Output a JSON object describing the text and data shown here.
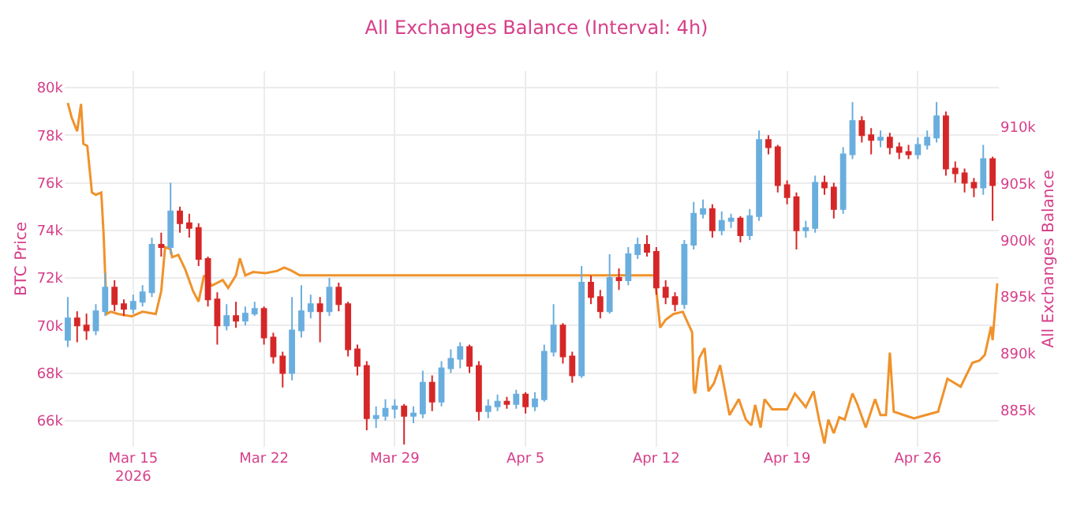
{
  "chart_data": {
    "type": "candlestick",
    "title": "All Exchanges Balance (Interval: 4h)",
    "ylabel": "BTC Price",
    "y2label": "All Exchanges Balance",
    "xlim": [
      "2026-03-11T08:00",
      "2026-04-30T08:00"
    ],
    "xticks": [
      {
        "value": "2026-03-15",
        "label": "Mar 15\n2026"
      },
      {
        "value": "2026-03-22",
        "label": "Mar 22"
      },
      {
        "value": "2026-03-29",
        "label": "Mar 29"
      },
      {
        "value": "2026-04-05",
        "label": "Apr 5"
      },
      {
        "value": "2026-04-12",
        "label": "Apr 12"
      },
      {
        "value": "2026-04-19",
        "label": "Apr 19"
      },
      {
        "value": "2026-04-26",
        "label": "Apr 26"
      }
    ],
    "ylim": [
      64900,
      80700
    ],
    "yticks": [
      {
        "value": 66000,
        "label": "66k"
      },
      {
        "value": 68000,
        "label": "68k"
      },
      {
        "value": 70000,
        "label": "70k"
      },
      {
        "value": 72000,
        "label": "72k"
      },
      {
        "value": 74000,
        "label": "74k"
      },
      {
        "value": 76000,
        "label": "76k"
      },
      {
        "value": 78000,
        "label": "78k"
      },
      {
        "value": 80000,
        "label": "80k"
      }
    ],
    "y2lim": [
      881800,
      914900
    ],
    "y2ticks": [
      {
        "value": 885000,
        "label": "885k"
      },
      {
        "value": 890000,
        "label": "890k"
      },
      {
        "value": 895000,
        "label": "895k"
      },
      {
        "value": 900000,
        "label": "900k"
      },
      {
        "value": 905000,
        "label": "905k"
      },
      {
        "value": 910000,
        "label": "910k"
      }
    ],
    "grid": true,
    "series": [
      {
        "colors": [
          "#6aaede",
          "#d62728",
          "#d62728",
          "#6aaede",
          "#6aaede",
          "#d62728",
          "#d62728",
          "#6aaede",
          "#6aaede",
          "#6aaede",
          "#d62728",
          "#6aaede",
          "#d62728",
          "#d62728",
          "#d62728",
          "#d62728",
          "#d62728",
          "#6aaede",
          "#d62728",
          "#6aaede",
          "#6aaede",
          "#d62728",
          "#d62728",
          "#d62728",
          "#6aaede",
          "#6aaede",
          "#6aaede",
          "#d62728",
          "#6aaede",
          "#d62728",
          "#d62728",
          "#d62728",
          "#d62728",
          "#6aaede",
          "#6aaede",
          "#6aaede",
          "#d62728",
          "#6aaede",
          "#6aaede",
          "#d62728",
          "#6aaede",
          "#6aaede",
          "#6aaede",
          "#d62728",
          "#d62728",
          "#6aaede",
          "#6aaede",
          "#d62728",
          "#6aaede",
          "#d62728",
          "#6aaede",
          "#6aaede",
          "#6aaede",
          "#d62728",
          "#d62728",
          "#6aaede",
          "#d62728",
          "#d62728",
          "#6aaede",
          "#d62728",
          "#6aaede",
          "#6aaede",
          "#d62728",
          "#d62728",
          "#d62728",
          "#d62728",
          "#6aaede",
          "#6aaede",
          "#6aaede",
          "#d62728",
          "#6aaede",
          "#6aaede",
          "#d62728",
          "#6aaede",
          "#6aaede",
          "#d62728",
          "#d62728",
          "#d62728",
          "#d62728",
          "#6aaede",
          "#6aaede",
          "#d62728",
          "#d62728",
          "#6aaede",
          "#6aaede",
          "#d62728",
          "#d62728",
          "#6aaede",
          "#d62728",
          "#d62728",
          "#d62728",
          "#6aaede",
          "#6aaede",
          "#6aaede",
          "#d62728",
          "#d62728",
          "#d62728",
          "#d62728",
          "#6aaede",
          "#d62728"
        ],
        "x": [
          "2026-03-11T12:00",
          "2026-03-12T00:00",
          "2026-03-12T12:00",
          "2026-03-13T00:00",
          "2026-03-13T12:00",
          "2026-03-14T00:00",
          "2026-03-14T12:00",
          "2026-03-15T00:00",
          "2026-03-15T12:00",
          "2026-03-16T00:00",
          "2026-03-16T12:00",
          "2026-03-17T00:00",
          "2026-03-17T12:00",
          "2026-03-18T00:00",
          "2026-03-18T12:00",
          "2026-03-19T00:00",
          "2026-03-19T12:00",
          "2026-03-20T00:00",
          "2026-03-20T12:00",
          "2026-03-21T00:00",
          "2026-03-21T12:00",
          "2026-03-22T00:00",
          "2026-03-22T12:00",
          "2026-03-23T00:00",
          "2026-03-23T12:00",
          "2026-03-24T00:00",
          "2026-03-24T12:00",
          "2026-03-25T00:00",
          "2026-03-25T12:00",
          "2026-03-26T00:00",
          "2026-03-26T12:00",
          "2026-03-27T00:00",
          "2026-03-27T12:00",
          "2026-03-28T00:00",
          "2026-03-28T12:00",
          "2026-03-29T00:00",
          "2026-03-29T12:00",
          "2026-03-30T00:00",
          "2026-03-30T12:00",
          "2026-03-31T00:00",
          "2026-03-31T12:00",
          "2026-04-01T00:00",
          "2026-04-01T12:00",
          "2026-04-02T00:00",
          "2026-04-02T12:00",
          "2026-04-03T00:00",
          "2026-04-03T12:00",
          "2026-04-04T00:00",
          "2026-04-04T12:00",
          "2026-04-05T00:00",
          "2026-04-05T12:00",
          "2026-04-06T00:00",
          "2026-04-06T12:00",
          "2026-04-07T00:00",
          "2026-04-07T12:00",
          "2026-04-08T00:00",
          "2026-04-08T12:00",
          "2026-04-09T00:00",
          "2026-04-09T12:00",
          "2026-04-10T00:00",
          "2026-04-10T12:00",
          "2026-04-11T00:00",
          "2026-04-11T12:00",
          "2026-04-12T00:00",
          "2026-04-12T12:00",
          "2026-04-13T00:00",
          "2026-04-13T12:00",
          "2026-04-14T00:00",
          "2026-04-14T12:00",
          "2026-04-15T00:00",
          "2026-04-15T12:00",
          "2026-04-16T00:00",
          "2026-04-16T12:00",
          "2026-04-17T00:00",
          "2026-04-17T12:00",
          "2026-04-18T00:00",
          "2026-04-18T12:00",
          "2026-04-19T00:00",
          "2026-04-19T12:00",
          "2026-04-20T00:00",
          "2026-04-20T12:00",
          "2026-04-21T00:00",
          "2026-04-21T12:00",
          "2026-04-22T00:00",
          "2026-04-22T12:00",
          "2026-04-23T00:00",
          "2026-04-23T12:00",
          "2026-04-24T00:00",
          "2026-04-24T12:00",
          "2026-04-25T00:00",
          "2026-04-25T12:00",
          "2026-04-26T00:00",
          "2026-04-26T12:00",
          "2026-04-27T00:00",
          "2026-04-27T12:00",
          "2026-04-28T00:00",
          "2026-04-28T12:00",
          "2026-04-29T00:00",
          "2026-04-29T12:00",
          "2026-04-30T00:00"
        ],
        "ohlc": [
          [
            69400,
            71200,
            69100,
            70300
          ],
          [
            70300,
            70600,
            69300,
            70000
          ],
          [
            70000,
            70500,
            69400,
            69800
          ],
          [
            69800,
            70900,
            69600,
            70600
          ],
          [
            70600,
            72200,
            70400,
            71600
          ],
          [
            71600,
            71900,
            70600,
            70900
          ],
          [
            70900,
            71100,
            70400,
            70700
          ],
          [
            70700,
            71300,
            70500,
            71000
          ],
          [
            71000,
            71700,
            70800,
            71400
          ],
          [
            71400,
            73700,
            71200,
            73400
          ],
          [
            73400,
            73900,
            72900,
            73300
          ],
          [
            73300,
            76000,
            73000,
            74800
          ],
          [
            74800,
            75000,
            73900,
            74300
          ],
          [
            74300,
            74700,
            73700,
            74100
          ],
          [
            74100,
            74300,
            72500,
            72800
          ],
          [
            72800,
            72900,
            70800,
            71100
          ],
          [
            71100,
            71400,
            69200,
            70000
          ],
          [
            70000,
            70900,
            69800,
            70400
          ],
          [
            70400,
            71000,
            69900,
            70200
          ],
          [
            70200,
            70800,
            70000,
            70500
          ],
          [
            70500,
            71000,
            70400,
            70700
          ],
          [
            70700,
            70800,
            69200,
            69500
          ],
          [
            69500,
            69700,
            68400,
            68700
          ],
          [
            68700,
            68900,
            67400,
            68000
          ],
          [
            68000,
            71200,
            67700,
            69800
          ],
          [
            69800,
            71700,
            69500,
            70600
          ],
          [
            70600,
            71300,
            70300,
            70900
          ],
          [
            70900,
            71200,
            69300,
            70600
          ],
          [
            70600,
            72000,
            70400,
            71600
          ],
          [
            71600,
            71800,
            70600,
            70900
          ],
          [
            70900,
            71000,
            68700,
            69000
          ],
          [
            69000,
            69200,
            67900,
            68300
          ],
          [
            68300,
            68500,
            65600,
            66100
          ],
          [
            66100,
            66600,
            65700,
            66200
          ],
          [
            66200,
            66900,
            66000,
            66500
          ],
          [
            66500,
            66900,
            66100,
            66600
          ],
          [
            66600,
            66700,
            65000,
            66200
          ],
          [
            66200,
            66600,
            65900,
            66300
          ],
          [
            66300,
            68100,
            66100,
            67600
          ],
          [
            67600,
            67900,
            66400,
            66800
          ],
          [
            66800,
            68500,
            66600,
            68200
          ],
          [
            68200,
            69000,
            68000,
            68600
          ],
          [
            68600,
            69300,
            68200,
            69100
          ],
          [
            69100,
            69200,
            68000,
            68300
          ],
          [
            68300,
            68500,
            66000,
            66400
          ],
          [
            66400,
            66900,
            66100,
            66600
          ],
          [
            66600,
            67100,
            66400,
            66800
          ],
          [
            66800,
            67000,
            66500,
            66700
          ],
          [
            66700,
            67300,
            66500,
            67100
          ],
          [
            67100,
            67200,
            66300,
            66600
          ],
          [
            66600,
            67200,
            66400,
            66900
          ],
          [
            66900,
            69200,
            66800,
            68900
          ],
          [
            68900,
            70900,
            68700,
            70000
          ],
          [
            70000,
            70100,
            68400,
            68700
          ],
          [
            68700,
            68900,
            67600,
            67900
          ],
          [
            67900,
            72500,
            67800,
            71800
          ],
          [
            71800,
            72100,
            70900,
            71200
          ],
          [
            71200,
            71500,
            70300,
            70600
          ],
          [
            70600,
            73000,
            70500,
            72000
          ],
          [
            72000,
            72400,
            71500,
            71900
          ],
          [
            71900,
            73300,
            71700,
            73000
          ],
          [
            73000,
            73700,
            72800,
            73400
          ],
          [
            73400,
            73800,
            72900,
            73100
          ],
          [
            73100,
            73300,
            71300,
            71600
          ],
          [
            71600,
            71900,
            70900,
            71200
          ],
          [
            71200,
            71400,
            70600,
            70900
          ],
          [
            70900,
            73600,
            70700,
            73400
          ],
          [
            73400,
            75200,
            73200,
            74700
          ],
          [
            74700,
            75300,
            74500,
            74900
          ],
          [
            74900,
            75100,
            73700,
            74000
          ],
          [
            74000,
            74800,
            73800,
            74400
          ],
          [
            74400,
            74700,
            74100,
            74500
          ],
          [
            74500,
            74600,
            73500,
            73800
          ],
          [
            73800,
            74900,
            73600,
            74600
          ],
          [
            74600,
            78200,
            74400,
            77800
          ],
          [
            77800,
            78000,
            77200,
            77500
          ],
          [
            77500,
            77600,
            75600,
            75900
          ],
          [
            75900,
            76100,
            75100,
            75400
          ],
          [
            75400,
            75600,
            73200,
            74000
          ],
          [
            74000,
            74400,
            73700,
            74100
          ],
          [
            74100,
            76300,
            73900,
            76000
          ],
          [
            76000,
            76300,
            75500,
            75800
          ],
          [
            75800,
            76000,
            74500,
            74900
          ],
          [
            74900,
            77500,
            74700,
            77200
          ],
          [
            77200,
            79400,
            77000,
            78600
          ],
          [
            78600,
            78800,
            77700,
            78000
          ],
          [
            78000,
            78300,
            77200,
            77800
          ],
          [
            77800,
            78200,
            77500,
            77900
          ],
          [
            77900,
            78100,
            77200,
            77500
          ],
          [
            77500,
            77700,
            77000,
            77300
          ],
          [
            77300,
            77600,
            77000,
            77200
          ],
          [
            77200,
            77900,
            77000,
            77600
          ],
          [
            77600,
            78200,
            77400,
            77900
          ],
          [
            77900,
            79400,
            77700,
            78800
          ],
          [
            78800,
            79000,
            76300,
            76600
          ],
          [
            76600,
            76900,
            76000,
            76400
          ],
          [
            76400,
            76600,
            75600,
            76000
          ],
          [
            76000,
            76200,
            75400,
            75800
          ],
          [
            75800,
            77600,
            75500,
            77000
          ],
          [
            77000,
            77100,
            74400,
            75900
          ]
        ]
      },
      {
        "type": "line",
        "axis": "y2",
        "color": "#f0922b",
        "x": [
          "2026-03-11T12:00",
          "2026-03-11T17:00",
          "2026-03-12T00:00",
          "2026-03-12T05:00",
          "2026-03-12T08:00",
          "2026-03-12T13:00",
          "2026-03-12T19:00",
          "2026-03-13T00:00",
          "2026-03-13T07:00",
          "2026-03-13T10:00",
          "2026-03-13T14:00",
          "2026-03-13T19:00",
          "2026-03-14T05:00",
          "2026-03-14T22:00",
          "2026-03-15T12:00",
          "2026-03-16T05:00",
          "2026-03-16T12:00",
          "2026-03-16T17:00",
          "2026-03-17T00:00",
          "2026-03-17T02:00",
          "2026-03-17T10:00",
          "2026-03-17T19:00",
          "2026-03-18T05:00",
          "2026-03-18T12:00",
          "2026-03-18T19:00",
          "2026-03-19T05:00",
          "2026-03-19T19:00",
          "2026-03-20T02:00",
          "2026-03-20T12:00",
          "2026-03-20T17:00",
          "2026-03-21T00:00",
          "2026-03-21T10:00",
          "2026-03-22T02:00",
          "2026-03-22T17:00",
          "2026-03-23T02:00",
          "2026-03-23T12:00",
          "2026-03-23T22:00",
          "2026-04-11T22:00",
          "2026-04-12T05:00",
          "2026-04-12T12:00",
          "2026-04-12T22:00",
          "2026-04-13T10:00",
          "2026-04-13T22:00",
          "2026-04-14T00:00",
          "2026-04-14T02:00",
          "2026-04-14T07:00",
          "2026-04-14T14:00",
          "2026-04-14T19:00",
          "2026-04-15T02:00",
          "2026-04-15T10:00",
          "2026-04-15T22:00",
          "2026-04-16T10:00",
          "2026-04-16T19:00",
          "2026-04-17T02:00",
          "2026-04-17T07:00",
          "2026-04-17T14:00",
          "2026-04-17T19:00",
          "2026-04-18T05:00",
          "2026-04-19T00:00",
          "2026-04-19T10:00",
          "2026-04-20T00:00",
          "2026-04-20T10:00",
          "2026-04-20T17:00",
          "2026-04-21T00:00",
          "2026-04-21T05:00",
          "2026-04-21T12:00",
          "2026-04-21T19:00",
          "2026-04-22T02:00",
          "2026-04-22T12:00",
          "2026-04-22T18:00",
          "2026-04-23T05:00",
          "2026-04-23T17:00",
          "2026-04-24T00:00",
          "2026-04-24T07:00",
          "2026-04-24T12:00",
          "2026-04-24T17:00",
          "2026-04-25T06:00",
          "2026-04-25T19:00",
          "2026-04-26T10:00",
          "2026-04-27T02:00",
          "2026-04-27T14:00",
          "2026-04-28T07:00",
          "2026-04-28T22:00",
          "2026-04-29T07:00",
          "2026-04-29T14:00",
          "2026-04-29T22:00",
          "2026-04-30T00:00",
          "2026-04-30T06:00"
        ],
        "values": [
          912100,
          910800,
          909600,
          912000,
          908500,
          908300,
          904200,
          904000,
          904200,
          900500,
          893500,
          893700,
          893500,
          893300,
          893700,
          893500,
          895500,
          899400,
          899200,
          898500,
          898700,
          897400,
          895500,
          894600,
          896900,
          896000,
          896500,
          895800,
          896900,
          898400,
          896900,
          897200,
          897100,
          897300,
          897600,
          897300,
          896900,
          896900,
          892300,
          893000,
          893500,
          893700,
          891900,
          886900,
          886500,
          889600,
          890500,
          886700,
          887400,
          889000,
          884600,
          886000,
          884200,
          883700,
          885500,
          883500,
          886000,
          885100,
          885100,
          886500,
          885300,
          886700,
          884200,
          882100,
          884200,
          883000,
          884400,
          884200,
          886500,
          885600,
          883500,
          886000,
          884600,
          884600,
          890100,
          884900,
          884600,
          884300,
          884600,
          884900,
          887800,
          887100,
          889200,
          889400,
          889900,
          892400,
          891200,
          896200
        ]
      }
    ]
  }
}
